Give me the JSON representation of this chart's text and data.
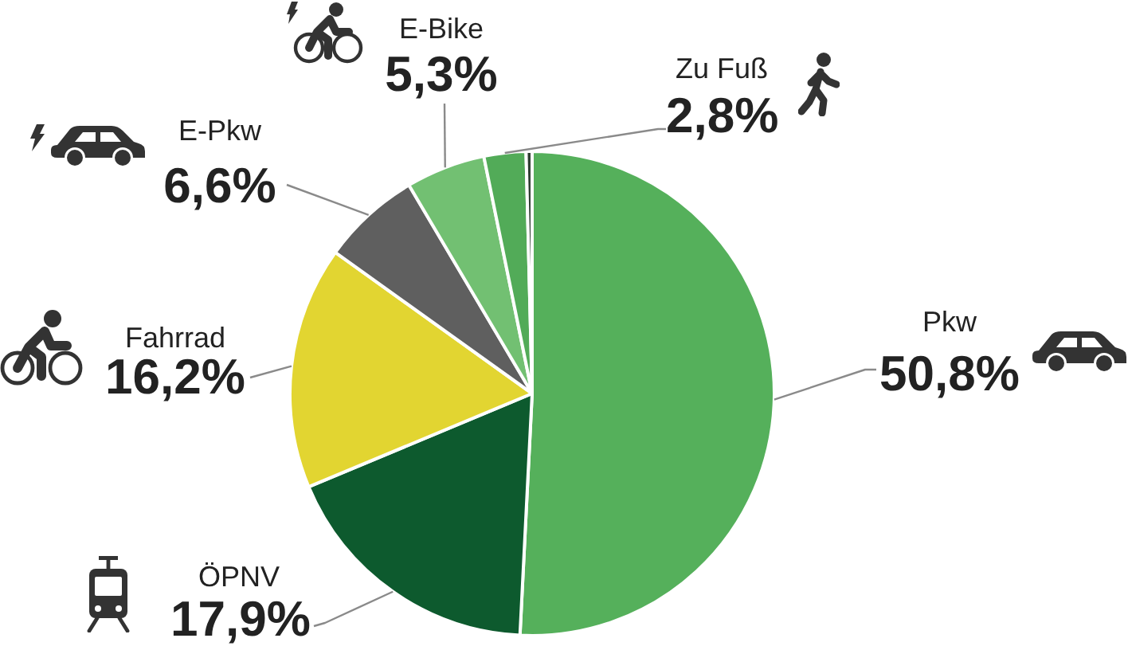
{
  "chart_data": {
    "type": "pie",
    "categories": [
      "Pkw",
      "ÖPNV",
      "Fahrrad",
      "E-Pkw",
      "E-Bike",
      "Zu Fuß",
      null
    ],
    "values": [
      50.8,
      17.9,
      16.2,
      6.6,
      5.3,
      2.8,
      0.4
    ],
    "colors": [
      "#55b05b",
      "#0d5a2e",
      "#e2d531",
      "#5f5f5f",
      "#72c072",
      "#52ab58",
      "#2f3f33"
    ],
    "value_labels": [
      "50,8%",
      "17,9%",
      "16,2%",
      "6,6%",
      "5,3%",
      "2,8%",
      null
    ]
  }
}
